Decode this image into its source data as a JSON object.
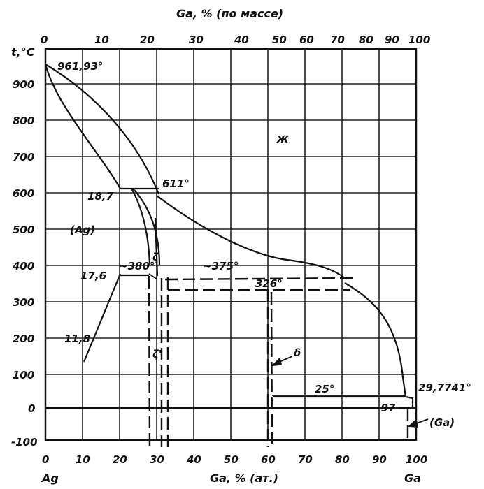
{
  "diagram": {
    "top_axis_title": "Ga, % (по массе)",
    "bottom_axis_title": "Ga, % (ат.)",
    "y_axis_title": "t,°C",
    "element_left": "Ag",
    "element_right": "Ga",
    "top_ticks": [
      "0",
      "10",
      "20",
      "30",
      "40",
      "50",
      "60",
      "70",
      "80",
      "90",
      "100"
    ],
    "bottom_ticks": [
      "0",
      "10",
      "20",
      "30",
      "40",
      "50",
      "60",
      "70",
      "80",
      "90",
      "100"
    ],
    "y_ticks": [
      "900",
      "800",
      "700",
      "600",
      "500",
      "400",
      "300",
      "200",
      "100",
      "0",
      "-100"
    ],
    "labels": {
      "ag_melting": "961,93°",
      "liquid": "Ж",
      "peritectic_611": "611°",
      "comp_18_7": "18,7",
      "ag_phase": "(Ag)",
      "zeta": "ζ",
      "t_380": "~380°",
      "t_375": "~375°",
      "comp_17_6": "17,6",
      "t_326": "326°",
      "comp_11_8": "11,8",
      "zeta_prime": "ζ'",
      "delta": "δ",
      "t_25": "25°",
      "ga_melting": "29,7741°",
      "comp_97": "~97",
      "ga_phase": "(Ga)"
    }
  },
  "colors": {
    "ink": "#111111",
    "grid": "#222222",
    "background": "#ffffff"
  }
}
